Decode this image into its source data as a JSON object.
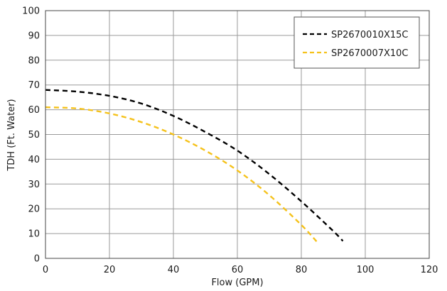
{
  "chart_data": {
    "type": "line",
    "title": "",
    "xlabel": "Flow (GPM)",
    "ylabel": "TDH (Ft. Water)",
    "xlim": [
      0,
      120
    ],
    "ylim": [
      0,
      100
    ],
    "x_ticks": [
      "0",
      "20",
      "40",
      "60",
      "80",
      "100",
      "120"
    ],
    "y_ticks": [
      "0",
      "10",
      "20",
      "30",
      "40",
      "50",
      "60",
      "70",
      "80",
      "90",
      "100"
    ],
    "grid": true,
    "legend_position": "top-right",
    "series": [
      {
        "name": "SP2670010X15C",
        "color": "#000000",
        "style": "dashed",
        "x": [
          0,
          10,
          20,
          30,
          40,
          50,
          60,
          70,
          80,
          90,
          93
        ],
        "y": [
          68,
          67.3,
          65.6,
          62.5,
          57.5,
          51,
          43.5,
          34,
          23,
          11,
          7
        ]
      },
      {
        "name": "SP2670007X10C",
        "color": "#f5c21b",
        "style": "dashed",
        "x": [
          0,
          10,
          20,
          30,
          40,
          50,
          60,
          70,
          80,
          85
        ],
        "y": [
          61,
          60.5,
          58.5,
          55,
          50,
          43.5,
          35.5,
          25.5,
          13.5,
          6.5
        ]
      }
    ]
  }
}
